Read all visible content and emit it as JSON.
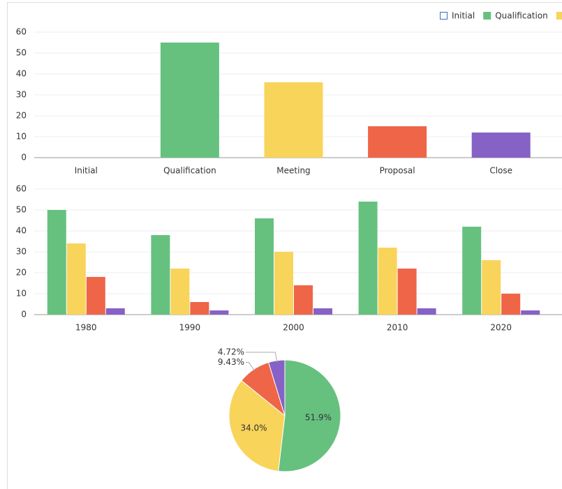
{
  "chart_data": [
    {
      "type": "bar",
      "categories": [
        "Initial",
        "Qualification",
        "Meeting",
        "Proposal",
        "Close"
      ],
      "values": [
        0,
        55,
        36,
        15,
        12
      ],
      "colors": [
        "#3b6fb6",
        "#66c17f",
        "#f8d45b",
        "#ee6548",
        "#8661c6"
      ],
      "ylim": [
        0,
        60
      ],
      "yticks": [
        0,
        10,
        20,
        30,
        40,
        50,
        60
      ],
      "grid": true,
      "legend": "top-right"
    },
    {
      "type": "grouped-bar",
      "categories": [
        "1980",
        "1990",
        "2000",
        "2010",
        "2020"
      ],
      "series": [
        {
          "color": "#66c17f",
          "values": [
            50,
            38,
            46,
            54,
            42
          ]
        },
        {
          "color": "#f8d45b",
          "values": [
            34,
            22,
            30,
            32,
            26
          ]
        },
        {
          "color": "#ee6548",
          "values": [
            18,
            6,
            14,
            22,
            10
          ]
        },
        {
          "color": "#8661c6",
          "values": [
            3,
            2,
            3,
            3,
            2
          ]
        }
      ],
      "ylim": [
        0,
        60
      ],
      "yticks": [
        0,
        10,
        20,
        30,
        40,
        50,
        60
      ],
      "grid": true
    },
    {
      "type": "pie",
      "values": [
        51.9,
        34.0,
        9.43,
        4.72
      ],
      "value_labels": [
        "51.9%",
        "34.0%",
        "9.43%",
        "4.72%"
      ],
      "colors": [
        "#66c17f",
        "#f8d45b",
        "#ee6548",
        "#8661c6"
      ]
    }
  ]
}
